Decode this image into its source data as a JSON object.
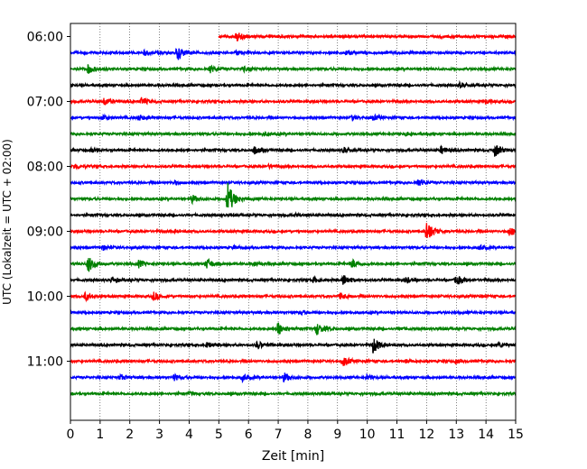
{
  "chart_data": {
    "type": "line",
    "title": "",
    "xlabel": "Zeit  [min]",
    "ylabel": "UTC (Lokalzeit = UTC + 02:00)",
    "xlim": [
      0,
      15
    ],
    "x_ticks": [
      "0",
      "1",
      "2",
      "3",
      "4",
      "5",
      "6",
      "7",
      "8",
      "9",
      "10",
      "11",
      "12",
      "13",
      "14",
      "15"
    ],
    "y_ticks": [
      "06:00",
      "07:00",
      "08:00",
      "09:00",
      "10:00",
      "11:00"
    ],
    "grid": "vertical dotted at each minute",
    "series_colors": [
      "#ff0000",
      "#0000ff",
      "#008000",
      "#000000"
    ],
    "traces": [
      {
        "start": "06:00",
        "color": "#ff0000",
        "x_start": 5.0,
        "events": [
          {
            "t": 5.6,
            "a": 0.6
          }
        ]
      },
      {
        "start": "06:15",
        "color": "#0000ff",
        "x_start": 0,
        "events": [
          {
            "t": 3.6,
            "a": 1.0
          },
          {
            "t": 2.5,
            "a": 0.3
          },
          {
            "t": 9.3,
            "a": 0.3
          },
          {
            "t": 5.6,
            "a": 0.3
          }
        ]
      },
      {
        "start": "06:30",
        "color": "#008000",
        "x_start": 0,
        "events": [
          {
            "t": 0.6,
            "a": 0.6
          },
          {
            "t": 4.7,
            "a": 0.5
          },
          {
            "t": 5.8,
            "a": 0.3
          }
        ]
      },
      {
        "start": "06:45",
        "color": "#000000",
        "x_start": 0,
        "events": [
          {
            "t": 13.1,
            "a": 0.3
          }
        ]
      },
      {
        "start": "07:00",
        "color": "#ff0000",
        "x_start": 0,
        "events": [
          {
            "t": 1.15,
            "a": 0.5
          },
          {
            "t": 2.4,
            "a": 0.5
          },
          {
            "t": 14.0,
            "a": 0.25
          }
        ]
      },
      {
        "start": "07:15",
        "color": "#0000ff",
        "x_start": 0,
        "events": [
          {
            "t": 1.1,
            "a": 0.35
          },
          {
            "t": 2.3,
            "a": 0.4
          },
          {
            "t": 9.5,
            "a": 0.3
          },
          {
            "t": 10.2,
            "a": 0.3
          }
        ]
      },
      {
        "start": "07:30",
        "color": "#008000",
        "x_start": 0,
        "events": [
          {
            "t": 11.3,
            "a": 0.25
          },
          {
            "t": 6.5,
            "a": 0.2
          }
        ]
      },
      {
        "start": "07:45",
        "color": "#000000",
        "x_start": 0,
        "events": [
          {
            "t": 6.2,
            "a": 0.5
          },
          {
            "t": 14.3,
            "a": 0.9
          },
          {
            "t": 12.5,
            "a": 0.5
          },
          {
            "t": 0.7,
            "a": 0.3
          },
          {
            "t": 9.2,
            "a": 0.3
          }
        ]
      },
      {
        "start": "08:00",
        "color": "#ff0000",
        "x_start": 0,
        "events": [
          {
            "t": 0.15,
            "a": 0.4
          },
          {
            "t": 6.7,
            "a": 0.2
          }
        ]
      },
      {
        "start": "08:15",
        "color": "#0000ff",
        "x_start": 0,
        "events": [
          {
            "t": 11.7,
            "a": 0.45
          },
          {
            "t": 3.5,
            "a": 0.2
          }
        ]
      },
      {
        "start": "08:30",
        "color": "#008000",
        "x_start": 0,
        "events": [
          {
            "t": 5.3,
            "a": 2.2
          },
          {
            "t": 4.1,
            "a": 0.5
          }
        ]
      },
      {
        "start": "08:45",
        "color": "#000000",
        "x_start": 0,
        "events": [
          {
            "t": 7.6,
            "a": 0.15
          }
        ]
      },
      {
        "start": "09:00",
        "color": "#ff0000",
        "x_start": 0,
        "events": [
          {
            "t": 12.0,
            "a": 1.5
          },
          {
            "t": 14.8,
            "a": 0.6
          },
          {
            "t": 3.5,
            "a": 0.15
          }
        ]
      },
      {
        "start": "09:15",
        "color": "#0000ff",
        "x_start": 0,
        "events": [
          {
            "t": 1.1,
            "a": 0.3
          },
          {
            "t": 13.8,
            "a": 0.3
          },
          {
            "t": 5.5,
            "a": 0.2
          }
        ]
      },
      {
        "start": "09:30",
        "color": "#008000",
        "x_start": 0,
        "events": [
          {
            "t": 0.6,
            "a": 1.1
          },
          {
            "t": 4.6,
            "a": 0.7
          },
          {
            "t": 9.5,
            "a": 0.6
          },
          {
            "t": 2.3,
            "a": 0.45
          },
          {
            "t": 6.2,
            "a": 0.3
          }
        ]
      },
      {
        "start": "09:45",
        "color": "#000000",
        "x_start": 0,
        "events": [
          {
            "t": 9.2,
            "a": 0.7
          },
          {
            "t": 13.0,
            "a": 0.6
          },
          {
            "t": 1.4,
            "a": 0.4
          },
          {
            "t": 11.3,
            "a": 0.4
          },
          {
            "t": 8.2,
            "a": 0.35
          }
        ]
      },
      {
        "start": "10:00",
        "color": "#ff0000",
        "x_start": 0,
        "events": [
          {
            "t": 0.5,
            "a": 0.5
          },
          {
            "t": 2.8,
            "a": 0.6
          },
          {
            "t": 9.1,
            "a": 0.4
          },
          {
            "t": 13.8,
            "a": 0.15
          }
        ]
      },
      {
        "start": "10:15",
        "color": "#0000ff",
        "x_start": 0,
        "events": [
          {
            "t": 7.8,
            "a": 0.2
          }
        ]
      },
      {
        "start": "10:30",
        "color": "#008000",
        "x_start": 0,
        "events": [
          {
            "t": 7.0,
            "a": 0.9
          },
          {
            "t": 8.3,
            "a": 0.8
          },
          {
            "t": 11.1,
            "a": 0.15
          }
        ]
      },
      {
        "start": "10:45",
        "color": "#000000",
        "x_start": 0,
        "events": [
          {
            "t": 10.2,
            "a": 1.1
          },
          {
            "t": 6.3,
            "a": 0.5
          },
          {
            "t": 14.4,
            "a": 0.4
          },
          {
            "t": 4.6,
            "a": 0.3
          }
        ]
      },
      {
        "start": "11:00",
        "color": "#ff0000",
        "x_start": 0,
        "events": [
          {
            "t": 9.2,
            "a": 0.6
          },
          {
            "t": 11.3,
            "a": 0.2
          },
          {
            "t": 13.0,
            "a": 0.2
          }
        ]
      },
      {
        "start": "11:15",
        "color": "#0000ff",
        "x_start": 0,
        "events": [
          {
            "t": 7.2,
            "a": 0.6
          },
          {
            "t": 3.5,
            "a": 0.4
          },
          {
            "t": 5.8,
            "a": 0.45
          },
          {
            "t": 1.7,
            "a": 0.35
          },
          {
            "t": 10.0,
            "a": 0.3
          }
        ]
      },
      {
        "start": "11:30",
        "color": "#008000",
        "x_start": 0,
        "events": [
          {
            "t": 4.0,
            "a": 0.15
          }
        ]
      }
    ]
  }
}
